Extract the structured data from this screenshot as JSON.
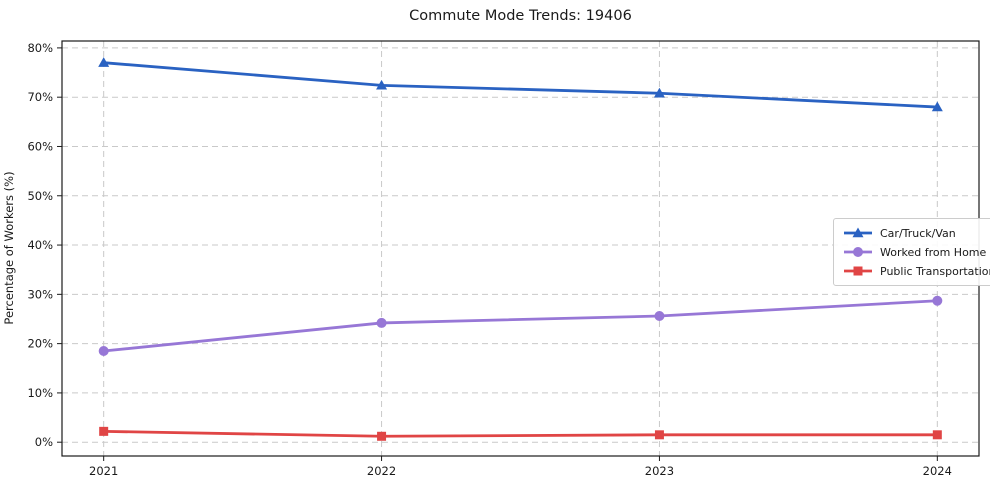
{
  "title": "Commute Mode Trends: 19406",
  "chart_data": {
    "type": "line",
    "title": "Commute Mode Trends: 19406",
    "xlabel": "",
    "ylabel": "Percentage of Workers (%)",
    "x": [
      2021,
      2022,
      2023,
      2024
    ],
    "x_tick_labels": [
      "2021",
      "2022",
      "2023",
      "2024"
    ],
    "y_ticks": [
      0,
      10,
      20,
      30,
      40,
      50,
      60,
      70,
      80
    ],
    "y_tick_suffix": "%",
    "xlim": [
      2020.85,
      2024.15
    ],
    "ylim": [
      -2.8,
      81.4
    ],
    "grid": true,
    "grid_style": "dashed",
    "grid_color": "#c9c9c9",
    "legend_position": "center right",
    "series": [
      {
        "name": "Car/Truck/Van",
        "marker": "triangle",
        "color": "#2a62c2",
        "values": [
          77.0,
          72.4,
          70.8,
          68.0
        ]
      },
      {
        "name": "Worked from Home",
        "marker": "circle",
        "color": "#9777d6",
        "values": [
          18.5,
          24.2,
          25.6,
          28.7
        ]
      },
      {
        "name": "Public Transportation",
        "marker": "square",
        "color": "#e04545",
        "values": [
          2.2,
          1.2,
          1.5,
          1.5
        ]
      }
    ]
  }
}
